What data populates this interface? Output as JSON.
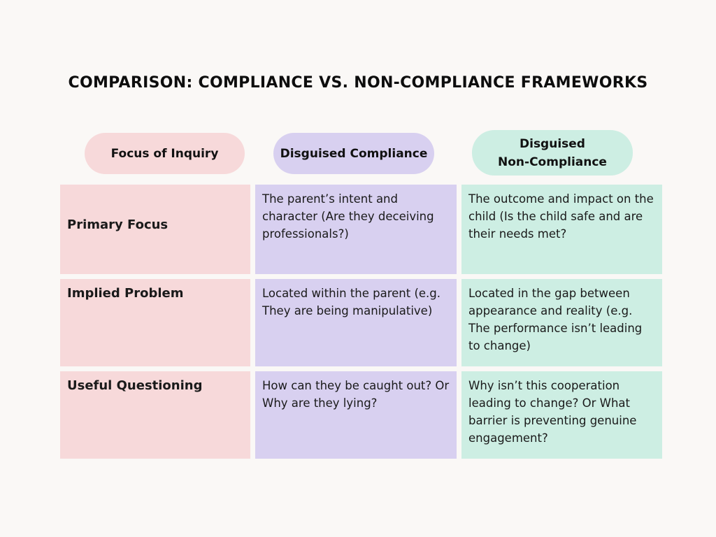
{
  "title": "COMPARISON: COMPLIANCE VS. NON-COMPLIANCE FRAMEWORKS",
  "headers": [
    "Focus of Inquiry",
    "Disguised Compliance",
    "Disguised\nNon-Compliance"
  ],
  "rows": [
    {
      "label": "Primary Focus",
      "compliance": "The parent’s intent and character (Are they deceiving professionals?)",
      "non_compliance": "The outcome and impact on the child (Is the child safe and are their needs met?"
    },
    {
      "label": "Implied Problem",
      "compliance": "Located within the parent (e.g. They are being manipulative)",
      "non_compliance": "Located in the gap between appearance and reality (e.g. The performance isn’t leading to change)"
    },
    {
      "label": "Useful Questioning",
      "compliance": "How can they be caught out? Or Why are they lying?",
      "non_compliance": "Why isn’t this cooperation leading to change? Or What barrier is preventing genuine engagement?"
    }
  ],
  "colors": {
    "pink": "#f7d9da",
    "lavender": "#d8d0f0",
    "mint": "#cdeee3",
    "background": "#faf8f6"
  }
}
